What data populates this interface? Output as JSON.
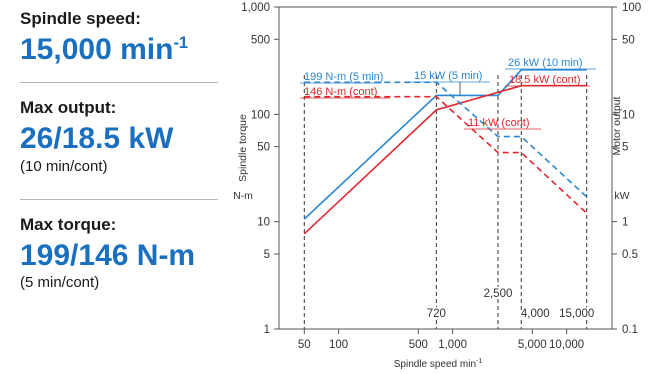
{
  "specs": {
    "speed": {
      "label": "Spindle speed:",
      "value": "15,000 min",
      "value_sup": "-1"
    },
    "output": {
      "label": "Max output:",
      "value": "26/18.5 kW",
      "note": "(10 min/cont)"
    },
    "torque": {
      "label": "Max torque:",
      "value": "199/146 N-m",
      "note": "(5 min/cont)"
    }
  },
  "colors": {
    "accent": "#1a6fbf",
    "five_min": "#2a86d0",
    "cont": "#e1262d",
    "text": "#1a1a1a"
  },
  "chart_data": {
    "type": "line",
    "x_scale": "log",
    "y_scale": "log",
    "xlim": [
      30,
      25000
    ],
    "ylim": [
      1,
      1000
    ],
    "y2lim": [
      0.1,
      100
    ],
    "xlabel": "Spindle speed min",
    "xlabel_sup": "-1",
    "ylabel": "Spindle torque",
    "yunit": "N-m",
    "y2label": "Motor output",
    "y2unit": "kW",
    "x_ticks": [
      50,
      100,
      500,
      1000,
      5000,
      10000
    ],
    "x_tick_labels": [
      "50",
      "100",
      "500",
      "1,000",
      "5,000",
      "10,000"
    ],
    "y_ticks": [
      1,
      5,
      10,
      50,
      100,
      500,
      1000
    ],
    "y_tick_labels": [
      "1",
      "5",
      "10",
      "50",
      "100",
      "500",
      "1,000"
    ],
    "y2_ticks": [
      0.1,
      0.5,
      1,
      5,
      10,
      50,
      100
    ],
    "y2_tick_labels": [
      "0.1",
      "0.5",
      "1",
      "5",
      "10",
      "50",
      "100"
    ],
    "series": [
      {
        "name": "",
        "kind": "power",
        "color": "#2a86d0",
        "dash": false,
        "x": [
          50,
          720,
          2500,
          4000,
          15000
        ],
        "y": [
          1.06,
          15,
          15,
          26,
          26
        ]
      },
      {
        "name": "",
        "kind": "power",
        "color": "#e1262d",
        "dash": false,
        "x": [
          50,
          720,
          4000,
          15000
        ],
        "y": [
          0.77,
          11,
          18.5,
          18.5
        ]
      },
      {
        "name": "",
        "kind": "torque",
        "color": "#2a86d0",
        "dash": true,
        "x": [
          50,
          720,
          2500,
          4000,
          15000
        ],
        "y": [
          199,
          199,
          62,
          62,
          17
        ]
      },
      {
        "name": "",
        "kind": "torque",
        "color": "#e1262d",
        "dash": true,
        "x": [
          50,
          720,
          2500,
          4000,
          15000
        ],
        "y": [
          146,
          146,
          44,
          44,
          12
        ]
      }
    ],
    "speed_markers": [
      {
        "x": 50,
        "label": ""
      },
      {
        "x": 720,
        "label": "720"
      },
      {
        "x": 2500,
        "label": "2,500"
      },
      {
        "x": 4000,
        "label": "4,000"
      },
      {
        "x": 15000,
        "label": "15,000"
      }
    ],
    "annotations": [
      {
        "text": "199 N-m (5 min)",
        "color": "#2a86d0"
      },
      {
        "text": "146 N-m (cont)",
        "color": "#e1262d"
      },
      {
        "text": "15 kW (5 min)",
        "color": "#2a86d0"
      },
      {
        "text": "26 kW (10 min)",
        "color": "#2a86d0"
      },
      {
        "text": "18.5 kW (cont)",
        "color": "#e1262d"
      },
      {
        "text": "11 kW (cont)",
        "color": "#e1262d"
      }
    ]
  }
}
